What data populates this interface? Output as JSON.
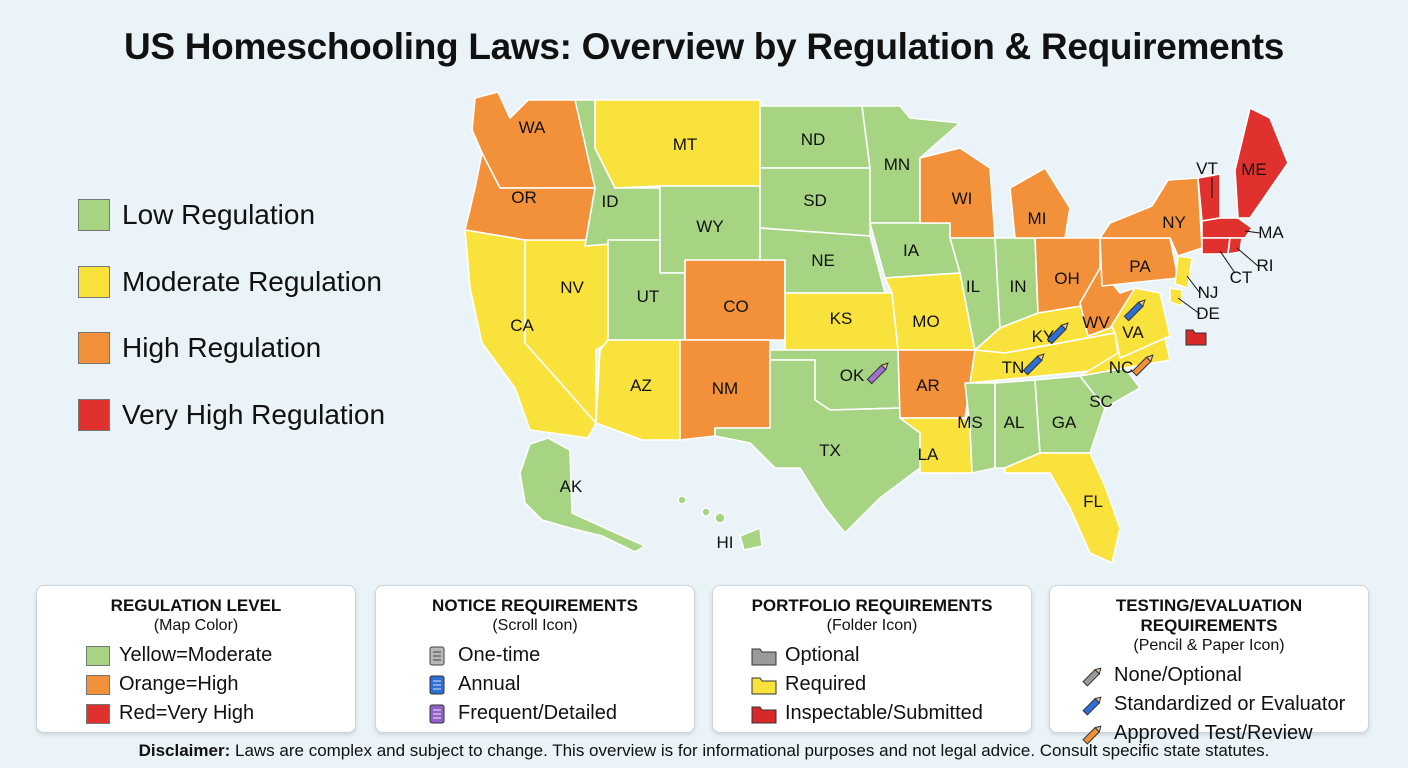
{
  "title": "US Homeschooling Laws: Overview by Regulation & Requirements",
  "colors": {
    "low": "#a6d483",
    "moderate": "#f9e23c",
    "high": "#f2913a",
    "very_high": "#e0312f"
  },
  "legend": [
    {
      "label": "Low Regulation",
      "level": "low"
    },
    {
      "label": "Moderate Regulation",
      "level": "moderate"
    },
    {
      "label": "High Regulation",
      "level": "high"
    },
    {
      "label": "Very High Regulation",
      "level": "very_high"
    }
  ],
  "states": [
    {
      "abbr": "WA",
      "level": "high"
    },
    {
      "abbr": "OR",
      "level": "high"
    },
    {
      "abbr": "CA",
      "level": "moderate"
    },
    {
      "abbr": "NV",
      "level": "moderate"
    },
    {
      "abbr": "ID",
      "level": "low"
    },
    {
      "abbr": "MT",
      "level": "moderate"
    },
    {
      "abbr": "WY",
      "level": "low"
    },
    {
      "abbr": "UT",
      "level": "low"
    },
    {
      "abbr": "CO",
      "level": "high"
    },
    {
      "abbr": "AZ",
      "level": "moderate"
    },
    {
      "abbr": "NM",
      "level": "high"
    },
    {
      "abbr": "ND",
      "level": "low"
    },
    {
      "abbr": "SD",
      "level": "low"
    },
    {
      "abbr": "NE",
      "level": "low"
    },
    {
      "abbr": "KS",
      "level": "moderate"
    },
    {
      "abbr": "OK",
      "level": "low",
      "icon": "pencil-purple"
    },
    {
      "abbr": "TX",
      "level": "low"
    },
    {
      "abbr": "MN",
      "level": "low"
    },
    {
      "abbr": "IA",
      "level": "low"
    },
    {
      "abbr": "MO",
      "level": "moderate"
    },
    {
      "abbr": "AR",
      "level": "high"
    },
    {
      "abbr": "LA",
      "level": "moderate"
    },
    {
      "abbr": "WI",
      "level": "high"
    },
    {
      "abbr": "IL",
      "level": "low"
    },
    {
      "abbr": "IN",
      "level": "low"
    },
    {
      "abbr": "MI",
      "level": "high"
    },
    {
      "abbr": "OH",
      "level": "high"
    },
    {
      "abbr": "KY",
      "level": "moderate",
      "icon": "pencil-blue"
    },
    {
      "abbr": "TN",
      "level": "moderate",
      "icon": "pencil-blue"
    },
    {
      "abbr": "MS",
      "level": "low"
    },
    {
      "abbr": "AL",
      "level": "low"
    },
    {
      "abbr": "GA",
      "level": "low"
    },
    {
      "abbr": "FL",
      "level": "moderate"
    },
    {
      "abbr": "SC",
      "level": "low"
    },
    {
      "abbr": "NC",
      "level": "moderate",
      "icon": "pencil-orange"
    },
    {
      "abbr": "VA",
      "level": "moderate",
      "icon": "pencil-blue"
    },
    {
      "abbr": "WV",
      "level": "high"
    },
    {
      "abbr": "PA",
      "level": "high"
    },
    {
      "abbr": "NY",
      "level": "high"
    },
    {
      "abbr": "NJ",
      "level": "moderate"
    },
    {
      "abbr": "DE",
      "level": "moderate",
      "icon": "folder-red"
    },
    {
      "abbr": "VT",
      "level": "very_high"
    },
    {
      "abbr": "ME",
      "level": "very_high"
    },
    {
      "abbr": "MA",
      "level": "very_high"
    },
    {
      "abbr": "RI",
      "level": "very_high"
    },
    {
      "abbr": "CT",
      "level": "very_high"
    },
    {
      "abbr": "AK",
      "level": "low"
    },
    {
      "abbr": "HI",
      "level": "low"
    }
  ],
  "cards": [
    {
      "title": "REGULATION LEVEL",
      "subtitle": "(Map Color)",
      "items": [
        {
          "label": "Yellow=Moderate",
          "icon": "swatch-green"
        },
        {
          "label": "Orange=High",
          "icon": "swatch-orange"
        },
        {
          "label": "Red=Very High",
          "icon": "swatch-red"
        }
      ]
    },
    {
      "title": "NOTICE REQUIREMENTS",
      "subtitle": "(Scroll Icon)",
      "items": [
        {
          "label": "One-time",
          "icon": "scroll-gray"
        },
        {
          "label": "Annual",
          "icon": "scroll-blue"
        },
        {
          "label": "Frequent/Detailed",
          "icon": "scroll-purple"
        }
      ]
    },
    {
      "title": "PORTFOLIO REQUIREMENTS",
      "subtitle": "(Folder Icon)",
      "items": [
        {
          "label": "Optional",
          "icon": "folder-gray"
        },
        {
          "label": "Required",
          "icon": "folder-yellow"
        },
        {
          "label": "Inspectable/Submitted",
          "icon": "folder-red"
        }
      ]
    },
    {
      "title": "TESTING/EVALUATION REQUIREMENTS",
      "subtitle": "(Pencil & Paper Icon)",
      "items": [
        {
          "label": "None/Optional",
          "icon": "pencil-gray"
        },
        {
          "label": "Standardized or Evaluator",
          "icon": "pencil-blue"
        },
        {
          "label": "Approved Test/Review",
          "icon": "pencil-orange"
        }
      ]
    }
  ],
  "disclaimer": {
    "label": "Disclaimer:",
    "text": " Laws are complex and subject to change. This overview is for informational purposes and not legal advice. Consult specific state statutes."
  }
}
